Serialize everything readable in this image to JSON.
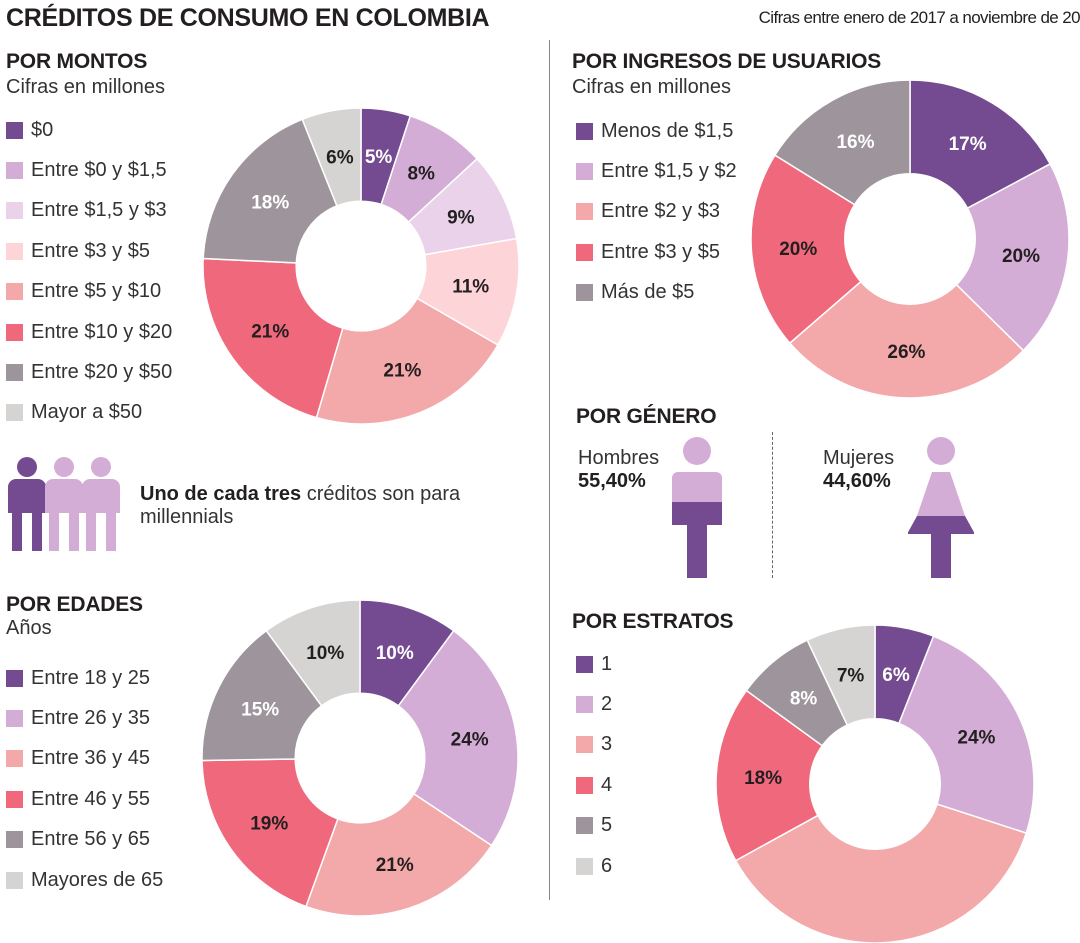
{
  "header": {
    "title": "CRÉDITOS DE CONSUMO EN COLOMBIA",
    "note": "Cifras entre enero de 2017 a noviembre de 20"
  },
  "colors": {
    "purple": "#744b91",
    "lilac": "#d4add6",
    "light_lilac": "#ead3ea",
    "light_pink": "#fdd4d8",
    "salmon": "#f3a8aa",
    "coral": "#f0687c",
    "gray": "#9d959b",
    "light_gray": "#d6d3d3"
  },
  "montos": {
    "title": "POR MONTOS",
    "subtitle": "Cifras en millones"
  },
  "ingresos": {
    "title": "POR INGRESOS DE USUARIOS",
    "subtitle": "Cifras en millones"
  },
  "edades": {
    "title": "POR EDADES",
    "subtitle": "Años"
  },
  "estratos": {
    "title": "POR ESTRATOS"
  },
  "millennials": {
    "bold": "Uno de cada tres",
    "rest": " créditos son para millennials"
  },
  "genero": {
    "title": "POR GÉNERO",
    "men_label": "Hombres",
    "men_value": "55,40%",
    "women_label": "Mujeres",
    "women_value": "44,60%"
  },
  "chart_data": [
    {
      "id": "montos",
      "type": "pie",
      "donut": true,
      "title": "POR MONTOS",
      "categories": [
        "$0",
        "Entre $0 y $1,5",
        "Entre $1,5 y $3",
        "Entre $3 y $5",
        "Entre $5 y $10",
        "Entre $10 y $20",
        "Entre $20 y $50",
        "Mayor a $50"
      ],
      "values": [
        5,
        8,
        9,
        11,
        21,
        21,
        18,
        6
      ],
      "labels": [
        "5%",
        "8%",
        "9%",
        "11%",
        "21%",
        "21%",
        "18%",
        "6%"
      ],
      "colors": [
        "#744b91",
        "#d4add6",
        "#ead3ea",
        "#fdd4d8",
        "#f3a8aa",
        "#f0687c",
        "#9d959b",
        "#d6d3d3"
      ],
      "label_colors": [
        "#ffffff",
        "#231f20",
        "#231f20",
        "#231f20",
        "#231f20",
        "#231f20",
        "#ffffff",
        "#231f20"
      ]
    },
    {
      "id": "ingresos",
      "type": "pie",
      "donut": true,
      "title": "POR INGRESOS DE USUARIOS",
      "categories": [
        "Menos de $1,5",
        "Entre $1,5 y $2",
        "Entre $2 y $3",
        "Entre $3 y $5",
        "Más de $5"
      ],
      "values": [
        17,
        20,
        26,
        20,
        16
      ],
      "labels": [
        "17%",
        "20%",
        "26%",
        "20%",
        "16%"
      ],
      "colors": [
        "#744b91",
        "#d4add6",
        "#f3a8aa",
        "#f0687c",
        "#9d959b"
      ],
      "label_colors": [
        "#ffffff",
        "#231f20",
        "#231f20",
        "#231f20",
        "#ffffff"
      ]
    },
    {
      "id": "edades",
      "type": "pie",
      "donut": true,
      "title": "POR EDADES",
      "categories": [
        "Entre 18 y 25",
        "Entre 26 y 35",
        "Entre 36 y 45",
        "Entre 46 y 55",
        "Entre 56 y 65",
        "Mayores de 65"
      ],
      "values": [
        10,
        24,
        21,
        19,
        15,
        10
      ],
      "labels": [
        "10%",
        "24%",
        "21%",
        "19%",
        "15%",
        "10%"
      ],
      "colors": [
        "#744b91",
        "#d4add6",
        "#f3a8aa",
        "#f0687c",
        "#9d959b",
        "#d6d3d3"
      ],
      "label_colors": [
        "#ffffff",
        "#231f20",
        "#231f20",
        "#231f20",
        "#ffffff",
        "#231f20"
      ]
    },
    {
      "id": "estratos",
      "type": "pie",
      "donut": true,
      "title": "POR ESTRATOS",
      "categories": [
        "1",
        "2",
        "3",
        "4",
        "5",
        "6"
      ],
      "values": [
        6,
        24,
        37,
        18,
        8,
        7
      ],
      "labels": [
        "6%",
        "24%",
        "",
        "18%",
        "8%",
        "7%"
      ],
      "colors": [
        "#744b91",
        "#d4add6",
        "#f3a8aa",
        "#f0687c",
        "#9d959b",
        "#d6d3d3"
      ],
      "label_colors": [
        "#ffffff",
        "#231f20",
        "#231f20",
        "#231f20",
        "#ffffff",
        "#231f20"
      ]
    }
  ]
}
